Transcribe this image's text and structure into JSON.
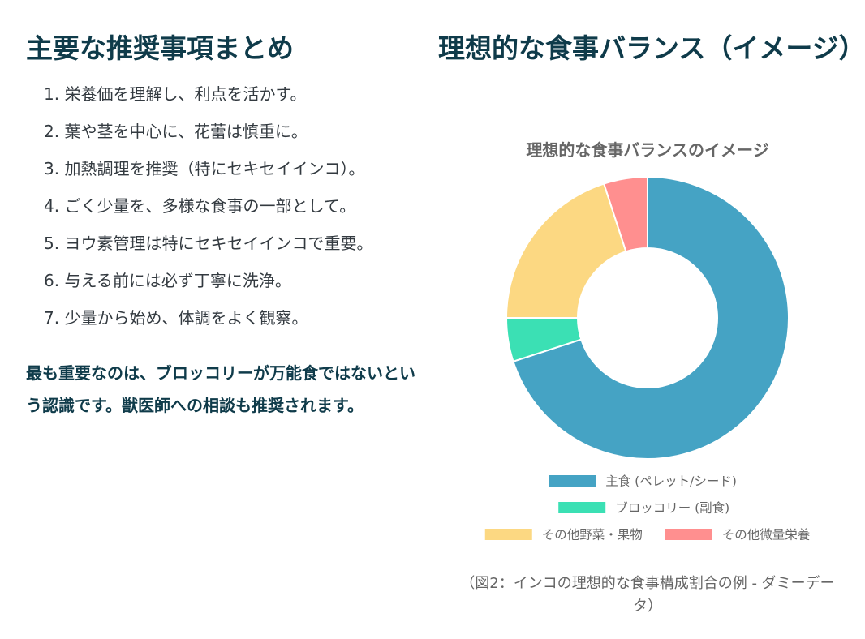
{
  "left": {
    "title": "主要な推奨事項まとめ",
    "items": [
      "1. 栄養価を理解し、利点を活かす。",
      "2. 葉や茎を中心に、花蕾は慎重に。",
      "3. 加熱調理を推奨（特にセキセイインコ）。",
      "4. ごく少量を、多様な食事の一部として。",
      "5. ヨウ素管理は特にセキセイインコで重要。",
      "6. 与える前には必ず丁寧に洗浄。",
      "7. 少量から始め、体調をよく観察。"
    ],
    "summary": "最も重要なのは、ブロッコリーが万能食ではないという認識です。獣医師への相談も推奨されます。"
  },
  "right": {
    "title": "理想的な食事バランス（イメージ）",
    "caption": "（図2：インコの理想的な食事構成割合の例 - ダミーデータ）"
  },
  "chart_data": {
    "type": "pie",
    "title": "理想的な食事バランスのイメージ",
    "categories": [
      "主食 (ペレット/シード)",
      "ブロッコリー (副食)",
      "その他野菜・果物",
      "その他微量栄養"
    ],
    "values": [
      70,
      5,
      20,
      5
    ],
    "colors": [
      "#45a3c4",
      "#3be0b4",
      "#fcd882",
      "#ff8f8f"
    ],
    "donut": true,
    "legend_position": "bottom"
  }
}
